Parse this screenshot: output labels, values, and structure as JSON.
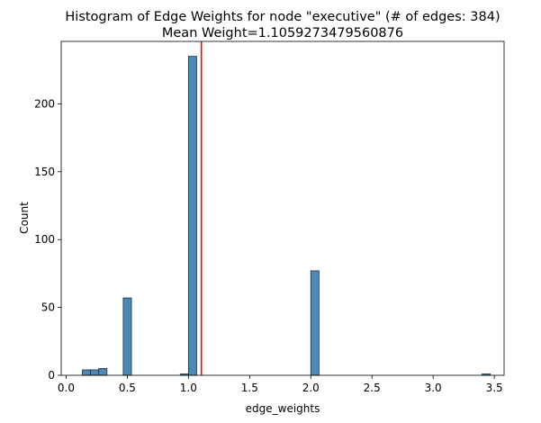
{
  "chart_data": {
    "type": "bar",
    "title": "Histogram of Edge Weights for node \"executive\" (# of edges: 384)",
    "subtitle": "Mean Weight=1.1059273479560876",
    "xlabel": "edge_weights",
    "ylabel": "Count",
    "xlim": [
      -0.04,
      3.58
    ],
    "ylim": [
      0,
      246
    ],
    "xticks": [
      "0.0",
      "0.5",
      "1.0",
      "1.5",
      "2.0",
      "2.5",
      "3.0",
      "3.5"
    ],
    "yticks": [
      "0",
      "50",
      "100",
      "150",
      "200"
    ],
    "grid": false,
    "bin_width": 0.067,
    "bins": [
      {
        "start": 0.133,
        "count": 4
      },
      {
        "start": 0.2,
        "count": 4
      },
      {
        "start": 0.267,
        "count": 5
      },
      {
        "start": 0.467,
        "count": 57
      },
      {
        "start": 0.933,
        "count": 1
      },
      {
        "start": 1.0,
        "count": 235
      },
      {
        "start": 2.0,
        "count": 77
      },
      {
        "start": 3.4,
        "count": 1
      }
    ],
    "mean_line": {
      "value": 1.1059273479560876,
      "color": "#ff0000"
    },
    "bar_color": "#4a8ab5",
    "bar_edge_color": "#1a2f40"
  }
}
